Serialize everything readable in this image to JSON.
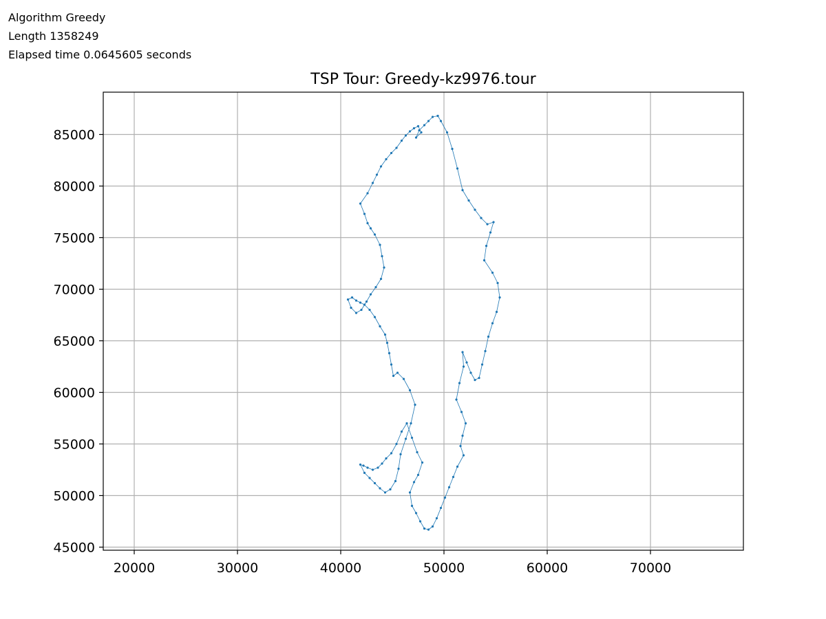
{
  "info": {
    "algorithm": "Algorithm Greedy",
    "length": "Length 1358249",
    "elapsed": "Elapsed time 0.0645605 seconds"
  },
  "chart_data": {
    "type": "line",
    "title": "TSP Tour: Greedy-kz9976.tour",
    "xlabel": "",
    "ylabel": "",
    "xlim": [
      17000,
      79000
    ],
    "ylim": [
      44700,
      89100
    ],
    "xticks": [
      20000,
      30000,
      40000,
      50000,
      60000,
      70000
    ],
    "xtick_labels": [
      "20000",
      "30000",
      "40000",
      "50000",
      "60000",
      "70000"
    ],
    "yticks": [
      45000,
      50000,
      55000,
      60000,
      65000,
      70000,
      75000,
      80000,
      85000
    ],
    "ytick_labels": [
      "45000",
      "50000",
      "55000",
      "60000",
      "65000",
      "70000",
      "75000",
      "80000",
      "85000"
    ],
    "grid": true,
    "series_color": "#1f77b4",
    "series": [
      {
        "values_note": "approximate tour outline (9976-city closed tour rendered as thin line with small markers)",
        "x": [
          49400,
          49700,
          50300,
          50800,
          51300,
          51800,
          52400,
          53000,
          53600,
          54200,
          54800,
          54500,
          54100,
          53900,
          54700,
          55200,
          55400,
          55100,
          54700,
          54300,
          54000,
          53700,
          53400,
          53000,
          52600,
          52200,
          51800,
          51900,
          51500,
          51200,
          51700,
          52100,
          51800,
          51600,
          51900,
          51300,
          50900,
          50500,
          50100,
          49700,
          49300,
          48900,
          48500,
          48100,
          47700,
          47300,
          46900,
          46700,
          47100,
          47500,
          47900,
          47400,
          46900,
          46400,
          45900,
          45400,
          44900,
          44400,
          44000,
          43600,
          43100,
          42600,
          42200,
          41900,
          42300,
          42800,
          43300,
          43800,
          44300,
          44800,
          45300,
          45600,
          45800,
          46300,
          46800,
          47200,
          46700,
          46100,
          45500,
          45100,
          44900,
          44700,
          44500,
          44300,
          43800,
          43300,
          42800,
          42300,
          41900,
          41500,
          41100,
          40700,
          41000,
          41500,
          42000,
          42500,
          42900,
          43400,
          43900,
          44200,
          44000,
          43800,
          43300,
          42900,
          42600,
          42300,
          41900,
          42600,
          43100,
          43500,
          43900,
          44400,
          44900,
          45400,
          45900,
          46300,
          46700,
          47100,
          47500,
          47800,
          47300,
          47600,
          48100,
          48500,
          48900,
          49400
        ],
        "y": [
          86800,
          86300,
          85200,
          83600,
          81700,
          79600,
          78600,
          77700,
          76900,
          76300,
          76500,
          75500,
          74200,
          72800,
          71600,
          70600,
          69200,
          67800,
          66700,
          65400,
          64000,
          62700,
          61400,
          61200,
          61900,
          62900,
          63900,
          62500,
          60900,
          59300,
          58100,
          57000,
          55800,
          54800,
          53900,
          52800,
          51800,
          50800,
          49800,
          48800,
          47800,
          47000,
          46700,
          46800,
          47500,
          48300,
          49000,
          50300,
          51300,
          52000,
          53200,
          54200,
          55600,
          57000,
          56200,
          55000,
          54100,
          53600,
          53100,
          52700,
          52500,
          52700,
          52900,
          53000,
          52200,
          51700,
          51200,
          50700,
          50300,
          50600,
          51400,
          52600,
          54000,
          55500,
          57000,
          58800,
          60200,
          61300,
          61900,
          61600,
          62700,
          63800,
          64800,
          65600,
          66400,
          67300,
          68000,
          68500,
          68700,
          68900,
          69200,
          69000,
          68200,
          67700,
          68000,
          68800,
          69500,
          70200,
          71000,
          72100,
          73200,
          74300,
          75300,
          75900,
          76400,
          77300,
          78300,
          79300,
          80300,
          81100,
          81900,
          82600,
          83200,
          83700,
          84400,
          84900,
          85300,
          85600,
          85800,
          85200,
          84700,
          85400,
          85900,
          86300,
          86700,
          86800
        ]
      }
    ]
  }
}
